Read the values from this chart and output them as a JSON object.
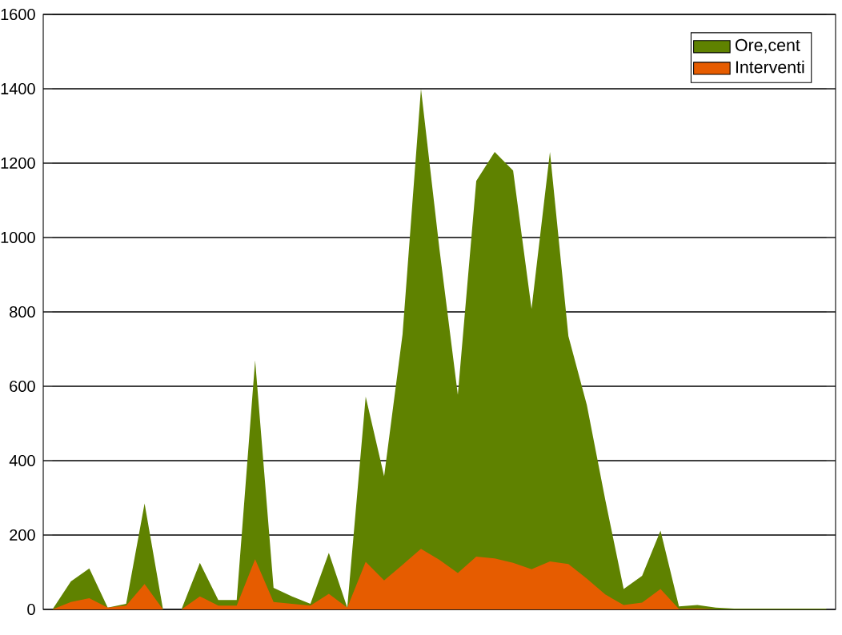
{
  "chart_data": {
    "type": "area",
    "categories": [
      null,
      null,
      null,
      null,
      null,
      null,
      null,
      null,
      null,
      null,
      null,
      null,
      null,
      null,
      null,
      null,
      null,
      null,
      null,
      null,
      null,
      null,
      null,
      null,
      null,
      null,
      null,
      null,
      null,
      null,
      null,
      null,
      null,
      null,
      null,
      null,
      null,
      null,
      null,
      null,
      null,
      null,
      null
    ],
    "series": [
      {
        "name": "Ore,cent",
        "color": "#5f8200",
        "values": [
          0,
          75,
          110,
          5,
          15,
          285,
          0,
          0,
          125,
          25,
          25,
          670,
          58,
          35,
          15,
          152,
          5,
          572,
          358,
          740,
          1400,
          970,
          577,
          1152,
          1230,
          1180,
          808,
          1230,
          735,
          550,
          295,
          55,
          90,
          212,
          8,
          12,
          5,
          2,
          2,
          2,
          2,
          2,
          2
        ]
      },
      {
        "name": "Interventi",
        "color": "#e65c00",
        "values": [
          0,
          20,
          30,
          5,
          10,
          68,
          0,
          0,
          35,
          10,
          10,
          135,
          20,
          15,
          10,
          42,
          5,
          128,
          78,
          120,
          163,
          133,
          98,
          142,
          137,
          125,
          108,
          129,
          122,
          83,
          40,
          12,
          18,
          55,
          1,
          2,
          0,
          0,
          0,
          0,
          0,
          0,
          0
        ]
      }
    ],
    "ylim": [
      0,
      1600
    ],
    "yticks": [
      0,
      200,
      400,
      600,
      800,
      1000,
      1200,
      1400,
      1600
    ],
    "grid": "y",
    "legend": "top right"
  }
}
